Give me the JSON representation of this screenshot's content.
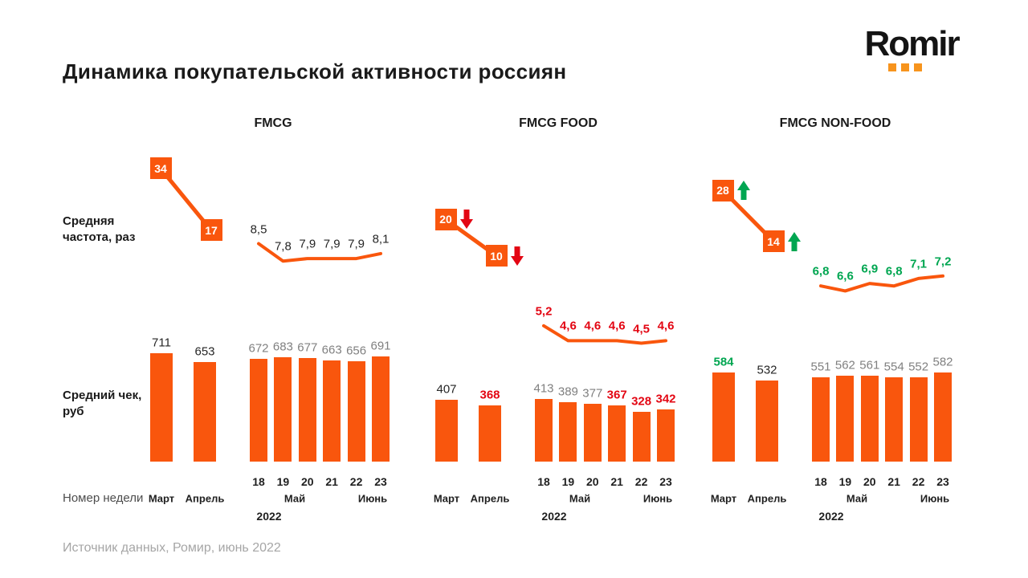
{
  "logo": {
    "text": "Romir"
  },
  "title": "Динамика покупательской активности россиян",
  "row_labels": {
    "frequency": "Средняя частота, раз",
    "check": "Средний чек, руб",
    "week_axis": "Номер недели"
  },
  "source": "Источник данных, Ромир, июнь 2022",
  "colors": {
    "orange": "#F9560D",
    "red": "#E30613",
    "green": "#00A651",
    "gray": "#808080",
    "black": "#262626",
    "logo_dot": "#F7941D",
    "source_text": "#A6A6A6"
  },
  "axis": {
    "months": [
      "Март",
      "Апрель"
    ],
    "weeks": [
      "18",
      "19",
      "20",
      "21",
      "22",
      "23"
    ],
    "month_row": [
      "Май",
      "Июнь"
    ],
    "year": "2022"
  },
  "chart_data": [
    {
      "title": "FMCG",
      "frequency": {
        "type": "line",
        "monthly": {
          "categories": [
            "Март",
            "Апрель"
          ],
          "values": [
            34,
            17
          ],
          "labels": [
            "34",
            "17"
          ],
          "arrows": [
            null,
            null
          ]
        },
        "weekly": {
          "categories": [
            "18",
            "19",
            "20",
            "21",
            "22",
            "23"
          ],
          "values": [
            8.5,
            7.8,
            7.9,
            7.9,
            7.9,
            8.1
          ],
          "labels": [
            "8,5",
            "7,8",
            "7,9",
            "7,9",
            "7,9",
            "8,1"
          ],
          "label_style": "black"
        }
      },
      "check": {
        "type": "bar",
        "monthly": {
          "categories": [
            "Март",
            "Апрель"
          ],
          "values": [
            711,
            653
          ],
          "labels": [
            "711",
            "653"
          ],
          "label_styles": [
            "black",
            "black"
          ]
        },
        "weekly": {
          "categories": [
            "18",
            "19",
            "20",
            "21",
            "22",
            "23"
          ],
          "values": [
            672,
            683,
            677,
            663,
            656,
            691
          ],
          "labels": [
            "672",
            "683",
            "677",
            "663",
            "656",
            "691"
          ],
          "label_styles": [
            "gray",
            "gray",
            "gray",
            "gray",
            "gray",
            "gray"
          ]
        }
      }
    },
    {
      "title": "FMCG FOOD",
      "frequency": {
        "type": "line",
        "monthly": {
          "categories": [
            "Март",
            "Апрель"
          ],
          "values": [
            20,
            10
          ],
          "labels": [
            "20",
            "10"
          ],
          "arrows": [
            "down",
            "down"
          ]
        },
        "weekly": {
          "categories": [
            "18",
            "19",
            "20",
            "21",
            "22",
            "23"
          ],
          "values": [
            5.2,
            4.6,
            4.6,
            4.6,
            4.5,
            4.6
          ],
          "labels": [
            "5,2",
            "4,6",
            "4,6",
            "4,6",
            "4,5",
            "4,6"
          ],
          "label_style": "red"
        }
      },
      "check": {
        "type": "bar",
        "monthly": {
          "categories": [
            "Март",
            "Апрель"
          ],
          "values": [
            407,
            368
          ],
          "labels": [
            "407",
            "368"
          ],
          "label_styles": [
            "black",
            "red"
          ]
        },
        "weekly": {
          "categories": [
            "18",
            "19",
            "20",
            "21",
            "22",
            "23"
          ],
          "values": [
            413,
            389,
            377,
            367,
            328,
            342
          ],
          "labels": [
            "413",
            "389",
            "377",
            "367",
            "328",
            "342"
          ],
          "label_styles": [
            "gray",
            "gray",
            "gray",
            "red",
            "red",
            "red"
          ]
        }
      }
    },
    {
      "title": "FMCG NON-FOOD",
      "frequency": {
        "type": "line",
        "monthly": {
          "categories": [
            "Март",
            "Апрель"
          ],
          "values": [
            28,
            14
          ],
          "labels": [
            "28",
            "14"
          ],
          "arrows": [
            "up",
            "up"
          ]
        },
        "weekly": {
          "categories": [
            "18",
            "19",
            "20",
            "21",
            "22",
            "23"
          ],
          "values": [
            6.8,
            6.6,
            6.9,
            6.8,
            7.1,
            7.2
          ],
          "labels": [
            "6,8",
            "6,6",
            "6,9",
            "6,8",
            "7,1",
            "7,2"
          ],
          "label_style": "green"
        }
      },
      "check": {
        "type": "bar",
        "monthly": {
          "categories": [
            "Март",
            "Апрель"
          ],
          "values": [
            584,
            532
          ],
          "labels": [
            "584",
            "532"
          ],
          "label_styles": [
            "green",
            "black"
          ]
        },
        "weekly": {
          "categories": [
            "18",
            "19",
            "20",
            "21",
            "22",
            "23"
          ],
          "values": [
            551,
            562,
            561,
            554,
            552,
            582
          ],
          "labels": [
            "551",
            "562",
            "561",
            "554",
            "552",
            "582"
          ],
          "label_styles": [
            "gray",
            "gray",
            "gray",
            "gray",
            "gray",
            "gray"
          ]
        }
      }
    }
  ]
}
